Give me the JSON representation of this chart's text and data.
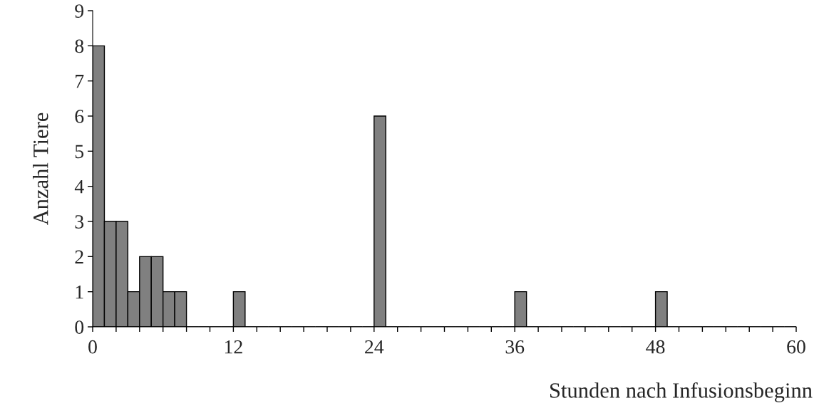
{
  "chart_data": {
    "type": "histogram",
    "xlabel": "Stunden nach Infusionsbeginn",
    "ylabel": "Anzahl Tiere",
    "bins": [
      0,
      1,
      2,
      3,
      4,
      5,
      6,
      7,
      8,
      9,
      10,
      11,
      12,
      13,
      14,
      15,
      16,
      17,
      18,
      19,
      20,
      21,
      22,
      23,
      24,
      25,
      26,
      27,
      28,
      29,
      30,
      31,
      32,
      33,
      34,
      35,
      36,
      37,
      38,
      39,
      40,
      41,
      42,
      43,
      44,
      45,
      46,
      47,
      48,
      49,
      50,
      51,
      52,
      53,
      54,
      55,
      56,
      57,
      58,
      59,
      60
    ],
    "values": [
      8,
      3,
      3,
      1,
      2,
      2,
      1,
      1,
      0,
      0,
      0,
      0,
      1,
      0,
      0,
      0,
      0,
      0,
      0,
      0,
      0,
      0,
      0,
      0,
      6,
      0,
      0,
      0,
      0,
      0,
      0,
      0,
      0,
      0,
      0,
      0,
      1,
      0,
      0,
      0,
      0,
      0,
      0,
      0,
      0,
      0,
      0,
      0,
      1,
      0,
      0,
      0,
      0,
      0,
      0,
      0,
      0,
      0,
      0,
      0
    ],
    "color": "#808080",
    "xlim": [
      0,
      60
    ],
    "xticks": [
      0,
      {
        "value": 2,
        "label": null
      },
      {
        "value": 4,
        "label": null
      },
      {
        "value": 6,
        "label": null
      },
      {
        "value": 8,
        "label": null
      },
      {
        "value": 10,
        "label": null
      },
      12,
      {
        "value": 14,
        "label": null
      },
      {
        "value": 16,
        "label": null
      },
      {
        "value": 18,
        "label": null
      },
      {
        "value": 20,
        "label": null
      },
      {
        "value": 22,
        "label": null
      },
      24,
      {
        "value": 26,
        "label": null
      },
      {
        "value": 28,
        "label": null
      },
      {
        "value": 30,
        "label": null
      },
      {
        "value": 32,
        "label": null
      },
      {
        "value": 34,
        "label": null
      },
      36,
      {
        "value": 38,
        "label": null
      },
      {
        "value": 40,
        "label": null
      },
      {
        "value": 42,
        "label": null
      },
      {
        "value": 44,
        "label": null
      },
      {
        "value": 46,
        "label": null
      },
      48,
      {
        "value": 50,
        "label": null
      },
      {
        "value": 52,
        "label": null
      },
      {
        "value": 54,
        "label": null
      },
      {
        "value": 56,
        "label": null
      },
      {
        "value": 58,
        "label": null
      },
      60
    ],
    "ylim": [
      0,
      9
    ],
    "yticks": [
      0,
      1,
      2,
      3,
      4,
      5,
      6,
      7,
      8,
      9
    ],
    "grid": false
  }
}
